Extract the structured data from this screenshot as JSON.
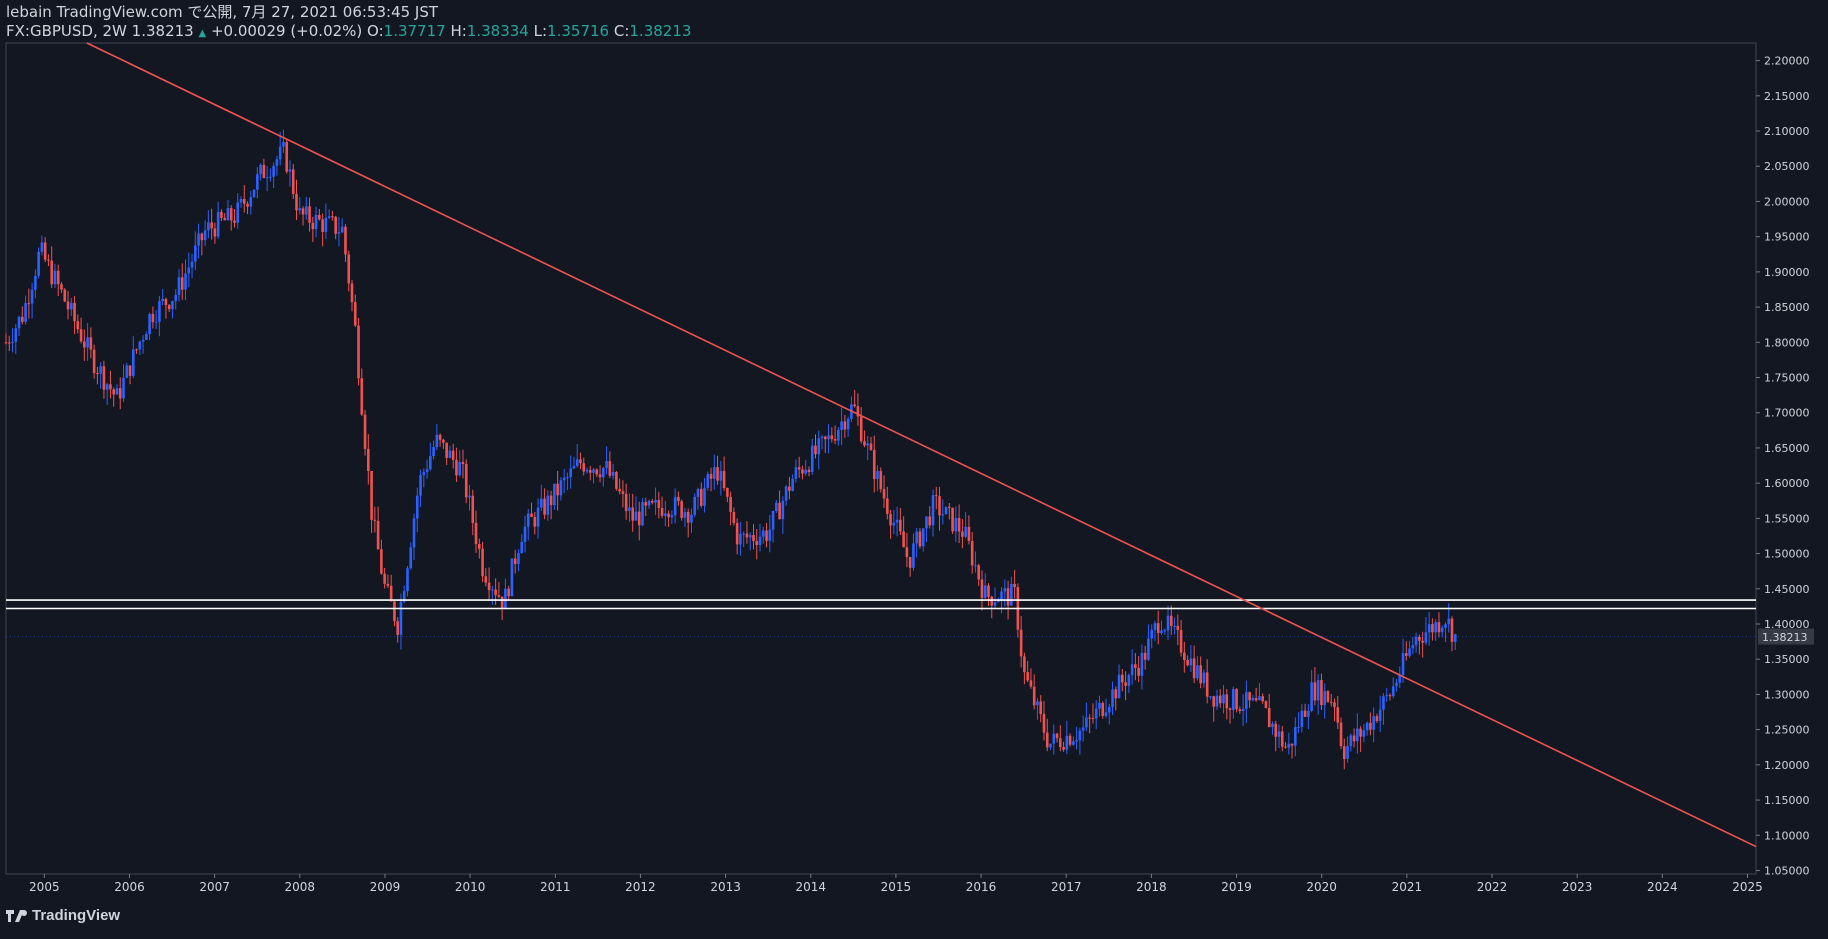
{
  "header": {
    "line1": "lebain TradingView.com で公開, 7月 27, 2021 06:53:45 JST",
    "symbol": "FX:GBPUSD, 2W",
    "last": "1.38213",
    "change": "+0.00029 (+0.02%)",
    "o_label": "O:",
    "o": "1.37717",
    "h_label": "H:",
    "h": "1.38334",
    "l_label": "L:",
    "l": "1.35716",
    "c_label": "C:",
    "c": "1.38213"
  },
  "footer": {
    "brand": "TradingView"
  },
  "colors": {
    "background": "#131722",
    "up": "#2962ff",
    "down": "#ef5350",
    "trendline": "#f05350",
    "hline": "#ffffff",
    "text": "#d1d4dc",
    "accent_green": "#26a69a"
  },
  "chart_data": {
    "type": "candlestick",
    "symbol": "FX:GBPUSD",
    "interval": "2W",
    "xlim": [
      2004.55,
      2025.1
    ],
    "ylim": [
      1.045,
      2.225
    ],
    "x_ticks": [
      "2005",
      "2006",
      "2007",
      "2008",
      "2009",
      "2010",
      "2011",
      "2012",
      "2013",
      "2014",
      "2015",
      "2016",
      "2017",
      "2018",
      "2019",
      "2020",
      "2021",
      "2022",
      "2023",
      "2024",
      "2025"
    ],
    "y_ticks": [
      "2.20000",
      "2.15000",
      "2.10000",
      "2.05000",
      "2.00000",
      "1.95000",
      "1.90000",
      "1.85000",
      "1.80000",
      "1.75000",
      "1.70000",
      "1.65000",
      "1.60000",
      "1.55000",
      "1.50000",
      "1.45000",
      "1.40000",
      "1.35000",
      "1.30000",
      "1.25000",
      "1.20000",
      "1.15000",
      "1.10000",
      "1.05000"
    ],
    "last_price_label": "1.38213",
    "last_price": 1.38213,
    "price_path": [
      [
        2004.55,
        1.8
      ],
      [
        2004.75,
        1.84
      ],
      [
        2004.95,
        1.93
      ],
      [
        2005.2,
        1.87
      ],
      [
        2005.55,
        1.78
      ],
      [
        2005.85,
        1.72
      ],
      [
        2006.25,
        1.84
      ],
      [
        2006.55,
        1.87
      ],
      [
        2006.9,
        1.96
      ],
      [
        2007.25,
        1.98
      ],
      [
        2007.55,
        2.04
      ],
      [
        2007.82,
        2.07
      ],
      [
        2008.0,
        1.98
      ],
      [
        2008.5,
        1.96
      ],
      [
        2008.65,
        1.82
      ],
      [
        2008.85,
        1.55
      ],
      [
        2009.0,
        1.45
      ],
      [
        2009.15,
        1.4
      ],
      [
        2009.4,
        1.6
      ],
      [
        2009.6,
        1.66
      ],
      [
        2009.9,
        1.62
      ],
      [
        2010.15,
        1.48
      ],
      [
        2010.4,
        1.43
      ],
      [
        2010.6,
        1.53
      ],
      [
        2010.9,
        1.57
      ],
      [
        2011.3,
        1.63
      ],
      [
        2011.6,
        1.62
      ],
      [
        2011.9,
        1.55
      ],
      [
        2012.3,
        1.57
      ],
      [
        2012.6,
        1.56
      ],
      [
        2012.9,
        1.62
      ],
      [
        2013.15,
        1.52
      ],
      [
        2013.5,
        1.53
      ],
      [
        2013.8,
        1.61
      ],
      [
        2014.2,
        1.66
      ],
      [
        2014.5,
        1.71
      ],
      [
        2014.8,
        1.6
      ],
      [
        2015.15,
        1.49
      ],
      [
        2015.45,
        1.57
      ],
      [
        2015.8,
        1.53
      ],
      [
        2016.05,
        1.44
      ],
      [
        2016.4,
        1.44
      ],
      [
        2016.5,
        1.33
      ],
      [
        2016.8,
        1.23
      ],
      [
        2017.2,
        1.25
      ],
      [
        2017.6,
        1.31
      ],
      [
        2017.9,
        1.35
      ],
      [
        2018.1,
        1.41
      ],
      [
        2018.35,
        1.37
      ],
      [
        2018.7,
        1.3
      ],
      [
        2019.0,
        1.29
      ],
      [
        2019.3,
        1.28
      ],
      [
        2019.6,
        1.22
      ],
      [
        2019.9,
        1.31
      ],
      [
        2020.15,
        1.29
      ],
      [
        2020.25,
        1.22
      ],
      [
        2020.5,
        1.25
      ],
      [
        2020.8,
        1.3
      ],
      [
        2021.1,
        1.38
      ],
      [
        2021.35,
        1.4
      ],
      [
        2021.45,
        1.41
      ],
      [
        2021.57,
        1.382
      ]
    ],
    "trendline": {
      "x": [
        2005.5,
        2025.1
      ],
      "y": [
        2.225,
        1.084
      ]
    },
    "horizontal_lines": [
      1.434,
      1.422
    ],
    "grid": false,
    "legend": "none"
  }
}
